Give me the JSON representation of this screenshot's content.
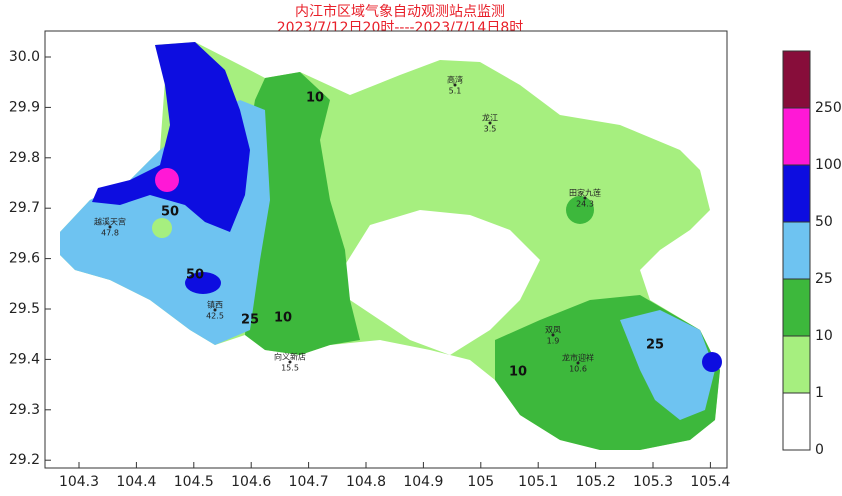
{
  "title": [
    "内江市区域气象自动观测站点监测",
    "2023/7/12日20时----2023/7/14日8时"
  ],
  "xticks": [
    104.3,
    104.4,
    104.5,
    104.6,
    104.7,
    104.8,
    104.9,
    105,
    105.1,
    105.2,
    105.3,
    105.4
  ],
  "yticks": [
    {
      "value": 30,
      "label": "30.0"
    },
    29.9,
    29.8,
    29.7,
    29.6,
    29.5,
    29.4,
    29.3,
    29.2
  ],
  "legend": {
    "levels": [
      0,
      1,
      10,
      25,
      50,
      100,
      250
    ],
    "colors": [
      "#ffffff",
      "#a6ef7f",
      "#3db83c",
      "#6ec3f1",
      "#0d0de0",
      "#ff18d6",
      "#870d3a"
    ]
  },
  "contour_labels": [
    "50",
    "50",
    "25",
    "10",
    "10",
    "25",
    "10"
  ],
  "stations": [
    {
      "name": "高湾",
      "value": 5.1
    },
    {
      "name": "龙江",
      "value": 3.5
    },
    {
      "name": "镇西",
      "value": 42.5
    },
    {
      "name": "越溪天宫",
      "value": 47.8
    },
    {
      "name": "田家九莲",
      "value": 24.3
    },
    {
      "name": "龙市迎祥",
      "value": 10.6
    },
    {
      "name": "双凤",
      "value": 1.9
    },
    {
      "name": "向义新店",
      "value": 15.5
    }
  ]
}
